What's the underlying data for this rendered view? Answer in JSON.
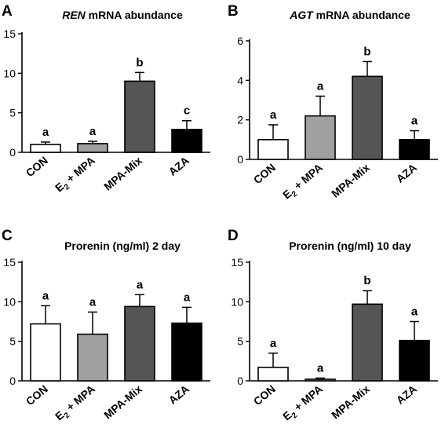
{
  "chart_data": [
    {
      "panel": "A",
      "type": "bar",
      "title_em": "REN",
      "title_rest": " mRNA abundance",
      "categories": [
        {
          "main": "CON",
          "sub": "",
          "tail": ""
        },
        {
          "main": "E",
          "sub": "2",
          "tail": " + MPA"
        },
        {
          "main": "MPA-Mix",
          "sub": "",
          "tail": ""
        },
        {
          "main": "AZA",
          "sub": "",
          "tail": ""
        }
      ],
      "values": [
        1.0,
        1.1,
        9.0,
        2.9
      ],
      "errors": [
        0.3,
        0.3,
        1.1,
        1.1
      ],
      "significance": [
        "a",
        "a",
        "b",
        "c"
      ],
      "ylim": [
        0,
        15
      ],
      "yticks": [
        0,
        5,
        10,
        15
      ],
      "bar_colors": [
        "#ffffff",
        "#a0a0a0",
        "#555555",
        "#000000"
      ]
    },
    {
      "panel": "B",
      "type": "bar",
      "title_em": "AGT",
      "title_rest": " mRNA abundance",
      "categories": [
        {
          "main": "CON",
          "sub": "",
          "tail": ""
        },
        {
          "main": "E",
          "sub": "2",
          "tail": " + MPA"
        },
        {
          "main": "MPA-Mix",
          "sub": "",
          "tail": ""
        },
        {
          "main": "AZA",
          "sub": "",
          "tail": ""
        }
      ],
      "values": [
        1.0,
        2.2,
        4.2,
        1.0
      ],
      "errors": [
        0.75,
        1.0,
        0.75,
        0.45
      ],
      "significance": [
        "a",
        "a",
        "b",
        "a"
      ],
      "ylim": [
        0,
        6
      ],
      "yticks": [
        0,
        2,
        4,
        6
      ],
      "bar_colors": [
        "#ffffff",
        "#a0a0a0",
        "#555555",
        "#000000"
      ]
    },
    {
      "panel": "C",
      "type": "bar",
      "title_em": "",
      "title_rest": "Prorenin (ng/ml) 2 day",
      "categories": [
        {
          "main": "CON",
          "sub": "",
          "tail": ""
        },
        {
          "main": "E",
          "sub": "2",
          "tail": " + MPA"
        },
        {
          "main": "MPA-Mix",
          "sub": "",
          "tail": ""
        },
        {
          "main": "AZA",
          "sub": "",
          "tail": ""
        }
      ],
      "values": [
        7.2,
        5.9,
        9.4,
        7.3
      ],
      "errors": [
        2.3,
        2.8,
        1.5,
        2.0
      ],
      "significance": [
        "a",
        "a",
        "a",
        "a"
      ],
      "ylim": [
        0,
        15
      ],
      "yticks": [
        0,
        5,
        10,
        15
      ],
      "bar_colors": [
        "#ffffff",
        "#a0a0a0",
        "#555555",
        "#000000"
      ]
    },
    {
      "panel": "D",
      "type": "bar",
      "title_em": "",
      "title_rest": "Prorenin (ng/ml) 10 day",
      "categories": [
        {
          "main": "CON",
          "sub": "",
          "tail": ""
        },
        {
          "main": "E",
          "sub": "2",
          "tail": " + MPA"
        },
        {
          "main": "MPA-Mix",
          "sub": "",
          "tail": ""
        },
        {
          "main": "AZA",
          "sub": "",
          "tail": ""
        }
      ],
      "values": [
        1.7,
        0.2,
        9.7,
        5.1
      ],
      "errors": [
        1.8,
        0.15,
        1.7,
        2.4
      ],
      "significance": [
        "a",
        "a",
        "b",
        "a"
      ],
      "ylim": [
        0,
        15
      ],
      "yticks": [
        0,
        5,
        10,
        15
      ],
      "bar_colors": [
        "#ffffff",
        "#a0a0a0",
        "#555555",
        "#000000"
      ]
    }
  ]
}
